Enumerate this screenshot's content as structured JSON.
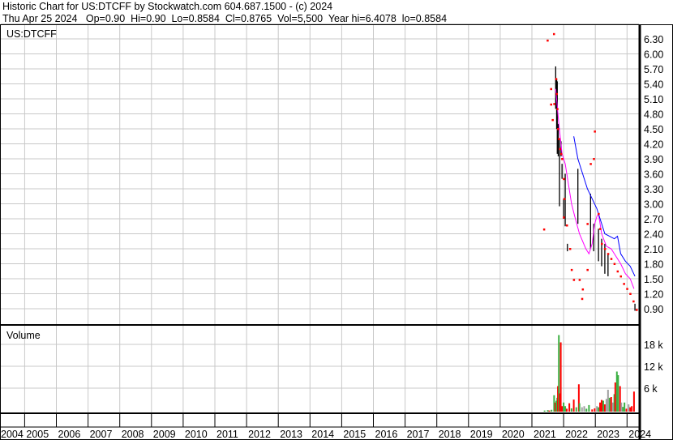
{
  "header": {
    "title": "Historic Chart for US:DTCFF by Stockwatch.com 604.687.1500 - (c) 2024",
    "quote": "Thu Apr 25 2024   Op=0.90  Hi=0.90  Lo=0.8584  Cl=0.8765  Vol=5,500  Year hi=6.4078  lo=0.8584"
  },
  "chart_data": [
    {
      "type": "line",
      "title": "US:DTCFF",
      "y_ticks": [
        "0.90",
        "1.20",
        "1.50",
        "1.80",
        "2.10",
        "2.40",
        "2.70",
        "3.00",
        "3.30",
        "3.60",
        "3.90",
        "4.20",
        "4.50",
        "4.80",
        "5.10",
        "5.40",
        "5.70",
        "6.00",
        "6.30"
      ],
      "ylim": [
        0.6,
        6.6
      ],
      "xlim": [
        2004,
        2024.35
      ],
      "x_ticks": [
        "2004",
        "2005",
        "2006",
        "2007",
        "2008",
        "2009",
        "2010",
        "2011",
        "2012",
        "2013",
        "2014",
        "2015",
        "2016",
        "2017",
        "2018",
        "2019",
        "2020",
        "2021",
        "2022",
        "2023",
        "2024"
      ],
      "grid": true,
      "colors": {
        "close": "#ff0000",
        "range": "#000000",
        "ma_short": "#ff00ff",
        "ma_long": "#0000ff",
        "grid": "#c8c8c8"
      },
      "ranges": [
        [
          2021.75,
          5.75,
          4.9
        ],
        [
          2021.78,
          5.5,
          4.5
        ],
        [
          2021.8,
          5.45,
          4.0
        ],
        [
          2021.83,
          4.6,
          3.95
        ],
        [
          2021.87,
          4.3,
          2.95
        ],
        [
          2021.92,
          4.25,
          3.95
        ],
        [
          2021.95,
          3.8,
          3.5
        ],
        [
          2022.0,
          3.1,
          2.7
        ],
        [
          2022.05,
          3.6,
          2.55
        ],
        [
          2022.12,
          2.2,
          2.05
        ],
        [
          2022.45,
          3.7,
          2.6
        ],
        [
          2022.85,
          3.2,
          2.1
        ],
        [
          2022.95,
          2.6,
          2.05
        ],
        [
          2023.1,
          2.5,
          1.85
        ],
        [
          2023.2,
          2.3,
          1.75
        ],
        [
          2023.3,
          2.2,
          1.6
        ],
        [
          2023.4,
          2.0,
          1.55
        ],
        [
          2024.25,
          1.0,
          0.86
        ]
      ],
      "closes": [
        [
          2021.38,
          2.49
        ],
        [
          2021.49,
          6.27
        ],
        [
          2021.69,
          6.4
        ],
        [
          2021.6,
          5.3
        ],
        [
          2021.6,
          4.99
        ],
        [
          2021.65,
          4.68
        ],
        [
          2021.7,
          5.0
        ],
        [
          2021.76,
          5.5
        ],
        [
          2021.78,
          5.2
        ],
        [
          2021.8,
          4.9
        ],
        [
          2021.82,
          4.5
        ],
        [
          2021.85,
          4.3
        ],
        [
          2021.88,
          4.1
        ],
        [
          2021.92,
          4.0
        ],
        [
          2021.95,
          3.9
        ],
        [
          2022.0,
          3.5
        ],
        [
          2022.02,
          3.1
        ],
        [
          2022.0,
          2.73
        ],
        [
          2022.1,
          2.57
        ],
        [
          2022.2,
          2.1
        ],
        [
          2022.25,
          1.68
        ],
        [
          2022.32,
          1.48
        ],
        [
          2022.5,
          1.48
        ],
        [
          2022.6,
          1.29
        ],
        [
          2022.58,
          1.1
        ],
        [
          2022.75,
          1.68
        ],
        [
          2022.75,
          2.6
        ],
        [
          2022.85,
          3.8
        ],
        [
          2022.95,
          3.9
        ],
        [
          2022.98,
          4.45
        ],
        [
          2023.1,
          2.8
        ],
        [
          2023.15,
          2.5
        ],
        [
          2023.2,
          2.2
        ],
        [
          2023.3,
          2.1
        ],
        [
          2023.4,
          2.0
        ],
        [
          2023.5,
          1.9
        ],
        [
          2023.6,
          1.8
        ],
        [
          2023.7,
          1.65
        ],
        [
          2023.8,
          1.55
        ],
        [
          2023.9,
          1.4
        ],
        [
          2024.0,
          1.3
        ],
        [
          2024.1,
          1.2
        ],
        [
          2024.2,
          1.05
        ],
        [
          2024.3,
          0.88
        ]
      ],
      "ma_short": [
        [
          2021.75,
          5.3
        ],
        [
          2021.85,
          4.6
        ],
        [
          2021.95,
          4.0
        ],
        [
          2022.05,
          3.8
        ],
        [
          2022.15,
          3.4
        ],
        [
          2022.25,
          3.0
        ],
        [
          2022.35,
          2.75
        ],
        [
          2022.5,
          2.4
        ],
        [
          2022.7,
          2.1
        ],
        [
          2022.8,
          2.0
        ],
        [
          2022.9,
          2.2
        ],
        [
          2022.98,
          2.6
        ],
        [
          2023.05,
          2.75
        ],
        [
          2023.1,
          2.8
        ],
        [
          2023.2,
          2.4
        ],
        [
          2023.35,
          2.15
        ],
        [
          2023.5,
          2.1
        ],
        [
          2023.65,
          1.95
        ],
        [
          2023.8,
          1.8
        ],
        [
          2023.95,
          1.6
        ],
        [
          2024.1,
          1.5
        ],
        [
          2024.22,
          1.3
        ]
      ],
      "ma_long": [
        [
          2022.32,
          4.35
        ],
        [
          2022.45,
          3.9
        ],
        [
          2022.6,
          3.6
        ],
        [
          2022.75,
          3.3
        ],
        [
          2022.9,
          3.1
        ],
        [
          2023.05,
          2.9
        ],
        [
          2023.15,
          2.7
        ],
        [
          2023.3,
          2.4
        ],
        [
          2023.45,
          2.35
        ],
        [
          2023.6,
          2.3
        ],
        [
          2023.7,
          2.35
        ],
        [
          2023.8,
          2.0
        ],
        [
          2023.95,
          1.85
        ],
        [
          2024.1,
          1.75
        ],
        [
          2024.25,
          1.55
        ]
      ]
    },
    {
      "type": "bar",
      "title": "Volume",
      "y_ticks": [
        "6 k",
        "12 k",
        "18 k"
      ],
      "ylim": [
        0,
        23000
      ],
      "colors": {
        "up": "#3cb043",
        "down": "#ff0000",
        "flat": "#a0a0a0"
      },
      "bars": [
        [
          2021.4,
          300,
          "up"
        ],
        [
          2021.5,
          400,
          "up"
        ],
        [
          2021.55,
          300,
          "down"
        ],
        [
          2021.62,
          500,
          "up"
        ],
        [
          2021.7,
          4500,
          "up"
        ],
        [
          2021.74,
          2500,
          "down"
        ],
        [
          2021.77,
          3000,
          "up"
        ],
        [
          2021.8,
          3800,
          "up"
        ],
        [
          2021.82,
          7000,
          "down"
        ],
        [
          2021.85,
          21000,
          "up"
        ],
        [
          2021.88,
          5000,
          "down"
        ],
        [
          2021.91,
          19000,
          "down"
        ],
        [
          2021.95,
          1500,
          "down"
        ],
        [
          2022.0,
          2500,
          "up"
        ],
        [
          2022.05,
          1500,
          "up"
        ],
        [
          2022.1,
          800,
          "down"
        ],
        [
          2022.18,
          2300,
          "down"
        ],
        [
          2022.25,
          900,
          "up"
        ],
        [
          2022.32,
          3300,
          "down"
        ],
        [
          2022.4,
          1200,
          "up"
        ],
        [
          2022.48,
          7500,
          "down"
        ],
        [
          2022.5,
          2300,
          "up"
        ],
        [
          2022.58,
          1200,
          "flat"
        ],
        [
          2022.65,
          1500,
          "flat"
        ],
        [
          2022.72,
          800,
          "up"
        ],
        [
          2022.8,
          1800,
          "up"
        ],
        [
          2022.9,
          600,
          "down"
        ],
        [
          2022.98,
          900,
          "down"
        ],
        [
          2023.05,
          1500,
          "flat"
        ],
        [
          2023.1,
          1200,
          "up"
        ],
        [
          2023.15,
          2500,
          "down"
        ],
        [
          2023.2,
          3200,
          "down"
        ],
        [
          2023.25,
          3000,
          "up"
        ],
        [
          2023.3,
          2000,
          "down"
        ],
        [
          2023.35,
          3500,
          "flat"
        ],
        [
          2023.4,
          6000,
          "flat"
        ],
        [
          2023.45,
          3800,
          "up"
        ],
        [
          2023.5,
          4000,
          "down"
        ],
        [
          2023.55,
          2500,
          "flat"
        ],
        [
          2023.6,
          4800,
          "up"
        ],
        [
          2023.63,
          8000,
          "down"
        ],
        [
          2023.68,
          11000,
          "up"
        ],
        [
          2023.72,
          10000,
          "up"
        ],
        [
          2023.78,
          7000,
          "down"
        ],
        [
          2023.82,
          2500,
          "flat"
        ],
        [
          2023.87,
          1300,
          "up"
        ],
        [
          2023.92,
          2500,
          "up"
        ],
        [
          2023.98,
          800,
          "down"
        ],
        [
          2024.05,
          2000,
          "flat"
        ],
        [
          2024.1,
          1200,
          "down"
        ],
        [
          2024.15,
          1500,
          "down"
        ],
        [
          2024.22,
          5500,
          "down"
        ]
      ]
    }
  ]
}
